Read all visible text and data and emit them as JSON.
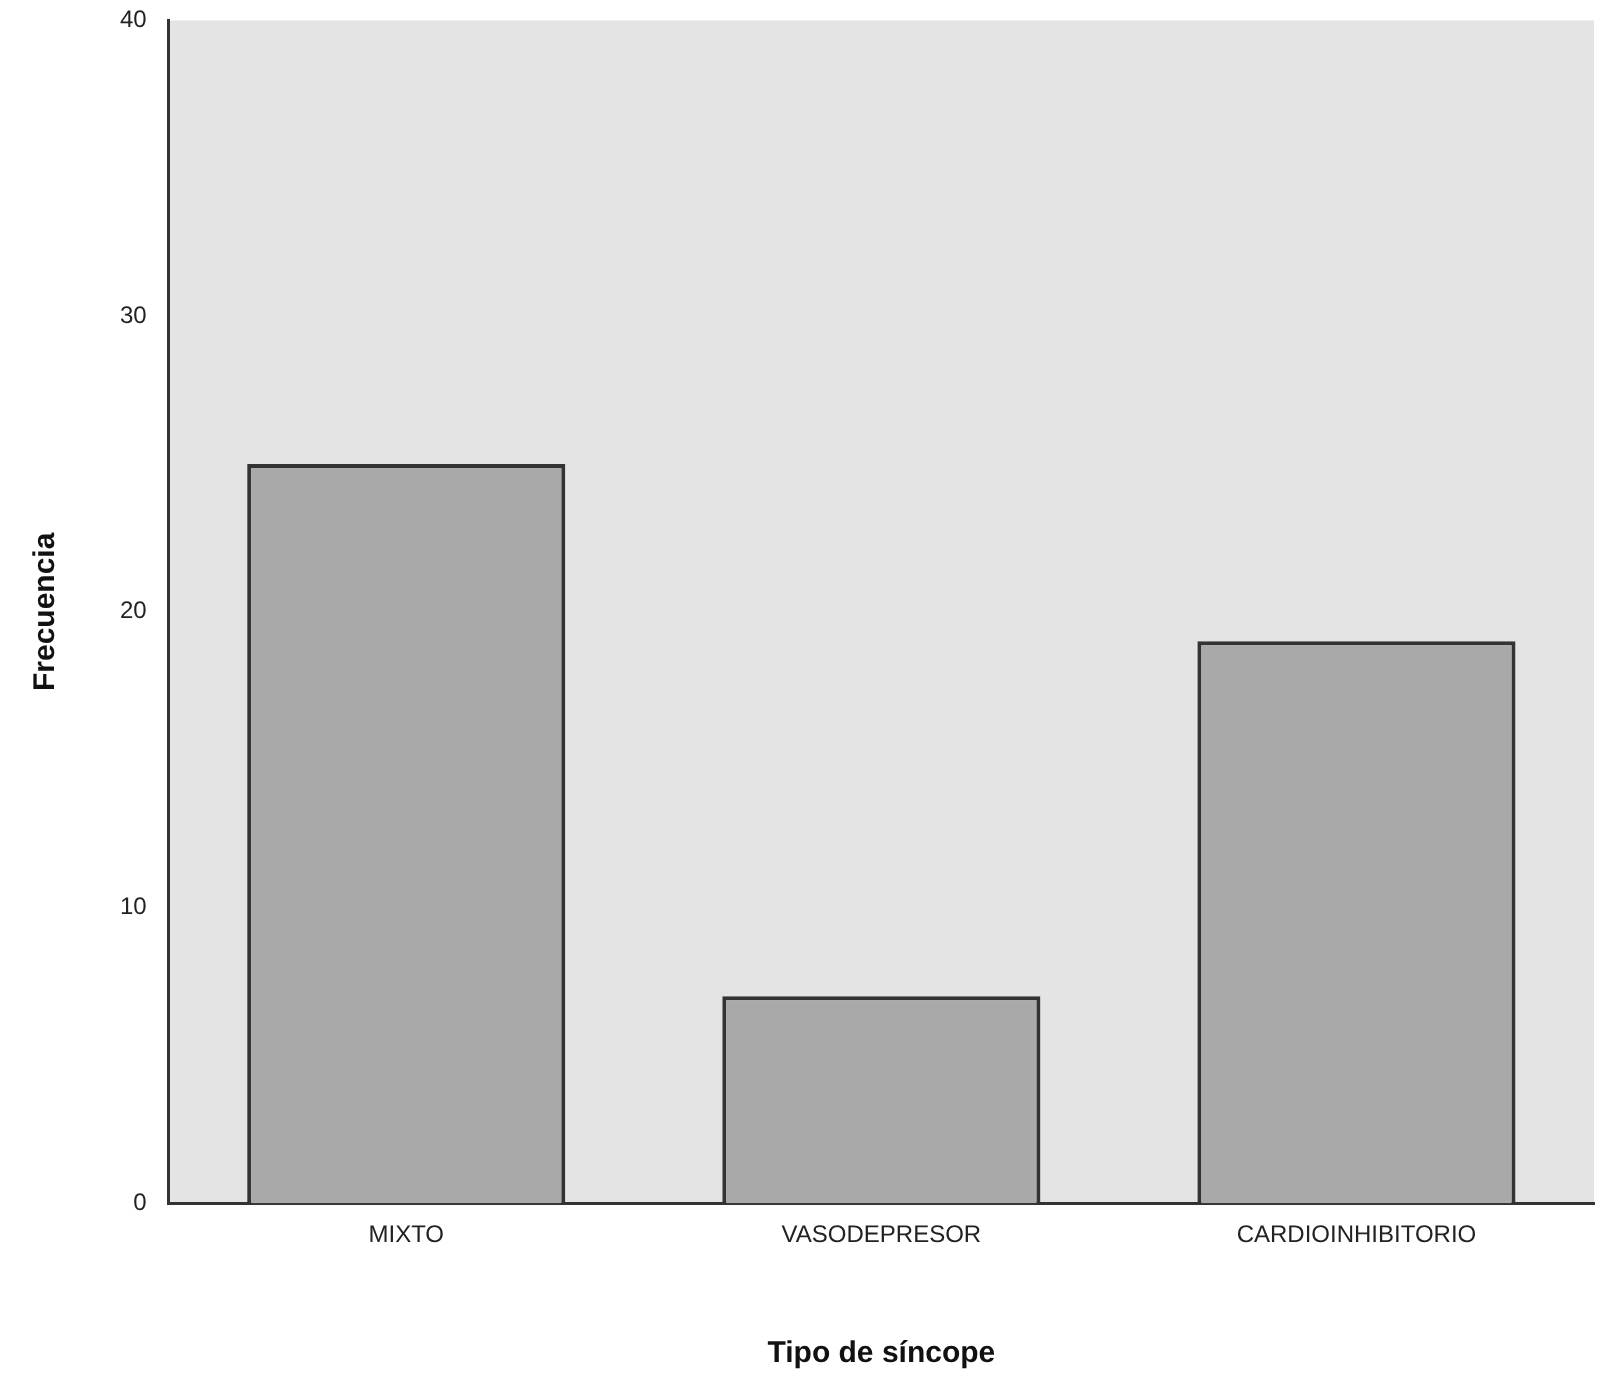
{
  "chart_data": {
    "type": "bar",
    "xlabel": "Tipo de síncope",
    "ylabel": "Frecuencia",
    "categories": [
      "MIXTO",
      "VASODEPRESOR",
      "CARDIOINHIBITORIO"
    ],
    "values": [
      25,
      7,
      19
    ],
    "color": "#a9a9a9",
    "ylim": [
      0,
      40
    ],
    "yticks": [
      0,
      10,
      20,
      30,
      40
    ],
    "grid": false,
    "legend": false
  }
}
